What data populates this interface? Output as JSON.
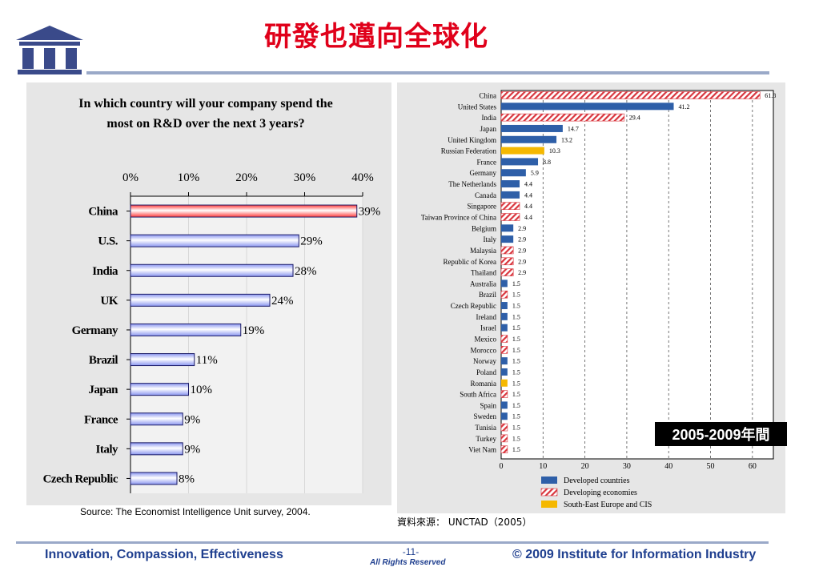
{
  "header": {
    "title": "研發也邁向全球化"
  },
  "colors": {
    "title_red": "#e0001a",
    "developed": "#2e5fa8",
    "developing": "#d9363e",
    "see_cis": "#f5b800",
    "left_bar_china": "#ff6a6a",
    "left_bar_other": "#b8c0f4"
  },
  "chart_data": [
    {
      "type": "bar",
      "orientation": "horizontal",
      "title": "In which country will your company spend the most on R&D over the next 3 years?",
      "xlim": [
        0,
        40
      ],
      "x_ticks": [
        "0%",
        "10%",
        "20%",
        "30%",
        "40%"
      ],
      "tick_values": [
        0,
        10,
        20,
        30,
        40
      ],
      "categories": [
        "China",
        "U.S.",
        "India",
        "UK",
        "Germany",
        "Brazil",
        "Japan",
        "France",
        "Italy",
        "Czech Republic"
      ],
      "values": [
        39,
        29,
        28,
        24,
        19,
        11,
        10,
        9,
        9,
        8
      ],
      "value_labels": [
        "39%",
        "29%",
        "28%",
        "24%",
        "19%",
        "11%",
        "10%",
        "9%",
        "9%",
        "8%"
      ],
      "highlight": "China",
      "grid": true,
      "source": "Source: The Economist Intelligence Unit survey, 2004."
    },
    {
      "type": "bar",
      "orientation": "horizontal",
      "xlim": [
        0,
        65
      ],
      "x_ticks": [
        "0",
        "10",
        "20",
        "30",
        "40",
        "50",
        "60"
      ],
      "tick_values": [
        0,
        10,
        20,
        30,
        40,
        50,
        60
      ],
      "grid": true,
      "categories": [
        "China",
        "United States",
        "India",
        "Japan",
        "United Kingdom",
        "Russian Federation",
        "France",
        "Germany",
        "The Netherlands",
        "Canada",
        "Singapore",
        "Taiwan Province of China",
        "Belgium",
        "Italy",
        "Malaysia",
        "Republic of Korea",
        "Thailand",
        "Australia",
        "Brazil",
        "Czech Republic",
        "Ireland",
        "Israel",
        "Mexico",
        "Morocco",
        "Norway",
        "Poland",
        "Romania",
        "South Africa",
        "Spain",
        "Sweden",
        "Tunisia",
        "Turkey",
        "Viet Nam"
      ],
      "values": [
        61.8,
        41.2,
        29.4,
        14.7,
        13.2,
        10.3,
        8.8,
        5.9,
        4.4,
        4.4,
        4.4,
        4.4,
        2.9,
        2.9,
        2.9,
        2.9,
        2.9,
        1.5,
        1.5,
        1.5,
        1.5,
        1.5,
        1.5,
        1.5,
        1.5,
        1.5,
        1.5,
        1.5,
        1.5,
        1.5,
        1.5,
        1.5,
        1.5
      ],
      "value_labels": [
        "61.8",
        "41.2",
        "29.4",
        "14.7",
        "13.2",
        "10.3",
        "8.8",
        "5.9",
        "4.4",
        "4.4",
        "4.4",
        "4.4",
        "2.9",
        "2.9",
        "2.9",
        "2.9",
        "2.9",
        "1.5",
        "1.5",
        "1.5",
        "1.5",
        "1.5",
        "1.5",
        "1.5",
        "1.5",
        "1.5",
        "1.5",
        "1.5",
        "1.5",
        "1.5",
        "1.5",
        "1.5",
        "1.5"
      ],
      "groups": [
        "dev",
        "developed",
        "dev",
        "developed",
        "developed",
        "see",
        "developed",
        "developed",
        "developed",
        "developed",
        "dev",
        "dev",
        "developed",
        "developed",
        "dev",
        "dev",
        "dev",
        "developed",
        "dev",
        "developed",
        "developed",
        "developed",
        "dev",
        "dev",
        "developed",
        "developed",
        "see",
        "dev",
        "developed",
        "developed",
        "dev",
        "dev",
        "dev"
      ],
      "legend": [
        {
          "key": "developed",
          "label": "Developed countries"
        },
        {
          "key": "dev",
          "label": "Developing economies"
        },
        {
          "key": "see",
          "label": "South-East Europe and CIS"
        }
      ],
      "legend_position": "bottom",
      "badge": "2005-2009年間",
      "source": "資料來源： UNCTAD（2005）"
    }
  ],
  "footer": {
    "slogan": "Innovation, Compassion, Effectiveness",
    "page": "-11-",
    "rights": "All Rights Reserved",
    "copyright": "© 2009 Institute for Information Industry"
  }
}
